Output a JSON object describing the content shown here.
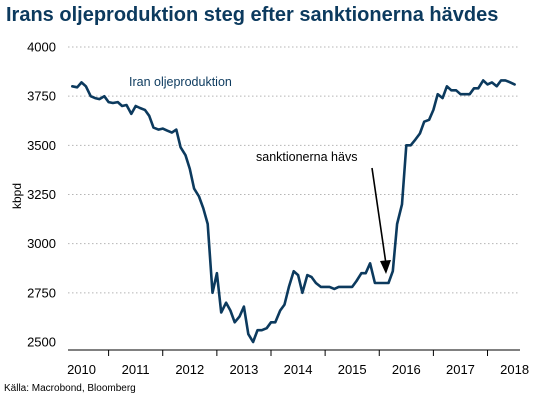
{
  "chart_data": {
    "type": "line",
    "title": "Irans oljeproduktion steg efter sanktionerna hävdes",
    "ylabel": "kbpd",
    "xlabel": "",
    "ylim": [
      2450,
      4000
    ],
    "xlim": [
      2009.75,
      2018.1
    ],
    "yticks": [
      2500,
      2750,
      3000,
      3250,
      3500,
      3750,
      4000
    ],
    "ytick_labels": [
      "2500",
      "2750",
      "3000",
      "3250",
      "3500",
      "3750",
      "4000"
    ],
    "xtick_labels": [
      "2010",
      "2011",
      "2012",
      "2013",
      "2014",
      "2015",
      "2016",
      "2017",
      "2018"
    ],
    "grid": "horizontal dotted",
    "line_color": "#0c3a5e",
    "series": [
      {
        "name": "Iran oljeproduktion",
        "x": [
          2009.83,
          2009.92,
          2010.0,
          2010.08,
          2010.17,
          2010.25,
          2010.33,
          2010.42,
          2010.5,
          2010.58,
          2010.67,
          2010.75,
          2010.83,
          2010.92,
          2011.0,
          2011.08,
          2011.17,
          2011.25,
          2011.33,
          2011.42,
          2011.5,
          2011.58,
          2011.67,
          2011.75,
          2011.83,
          2011.92,
          2012.0,
          2012.08,
          2012.17,
          2012.25,
          2012.33,
          2012.42,
          2012.5,
          2012.58,
          2012.67,
          2012.75,
          2012.83,
          2012.92,
          2013.0,
          2013.08,
          2013.17,
          2013.25,
          2013.33,
          2013.42,
          2013.5,
          2013.58,
          2013.67,
          2013.75,
          2013.83,
          2013.92,
          2014.0,
          2014.08,
          2014.17,
          2014.25,
          2014.33,
          2014.42,
          2014.5,
          2014.58,
          2014.67,
          2014.75,
          2014.83,
          2014.92,
          2015.0,
          2015.08,
          2015.17,
          2015.25,
          2015.33,
          2015.42,
          2015.5,
          2015.58,
          2015.67,
          2015.75,
          2015.83,
          2015.92,
          2016.0,
          2016.08,
          2016.17,
          2016.25,
          2016.33,
          2016.42,
          2016.5,
          2016.58,
          2016.67,
          2016.75,
          2016.83,
          2016.92,
          2017.0,
          2017.08,
          2017.17,
          2017.25,
          2017.33,
          2017.42,
          2017.5,
          2017.58,
          2017.67,
          2017.75,
          2017.83,
          2017.92,
          2018.0
        ],
        "values": [
          3800,
          3795,
          3820,
          3800,
          3750,
          3740,
          3735,
          3750,
          3720,
          3715,
          3720,
          3700,
          3705,
          3660,
          3700,
          3690,
          3680,
          3650,
          3590,
          3580,
          3585,
          3575,
          3565,
          3580,
          3490,
          3450,
          3380,
          3280,
          3240,
          3180,
          3100,
          2750,
          2850,
          2650,
          2700,
          2660,
          2600,
          2630,
          2680,
          2540,
          2500,
          2560,
          2560,
          2570,
          2600,
          2600,
          2660,
          2690,
          2780,
          2860,
          2840,
          2750,
          2840,
          2830,
          2800,
          2780,
          2780,
          2780,
          2770,
          2780,
          2780,
          2780,
          2780,
          2810,
          2850,
          2850,
          2900,
          2800,
          2800,
          2800,
          2800,
          2860,
          3100,
          3200,
          3500,
          3500,
          3530,
          3560,
          3620,
          3630,
          3680,
          3760,
          3740,
          3800,
          3780,
          3780,
          3760,
          3760,
          3760,
          3790,
          3790,
          3830,
          3810,
          3820,
          3800,
          3830,
          3830,
          3820,
          3810
        ]
      }
    ],
    "annotations": [
      {
        "text": "Iran oljeproduktion"
      },
      {
        "text": "sanktionerna hävs"
      }
    ]
  },
  "source": "Källa: Macrobond, Bloomberg"
}
